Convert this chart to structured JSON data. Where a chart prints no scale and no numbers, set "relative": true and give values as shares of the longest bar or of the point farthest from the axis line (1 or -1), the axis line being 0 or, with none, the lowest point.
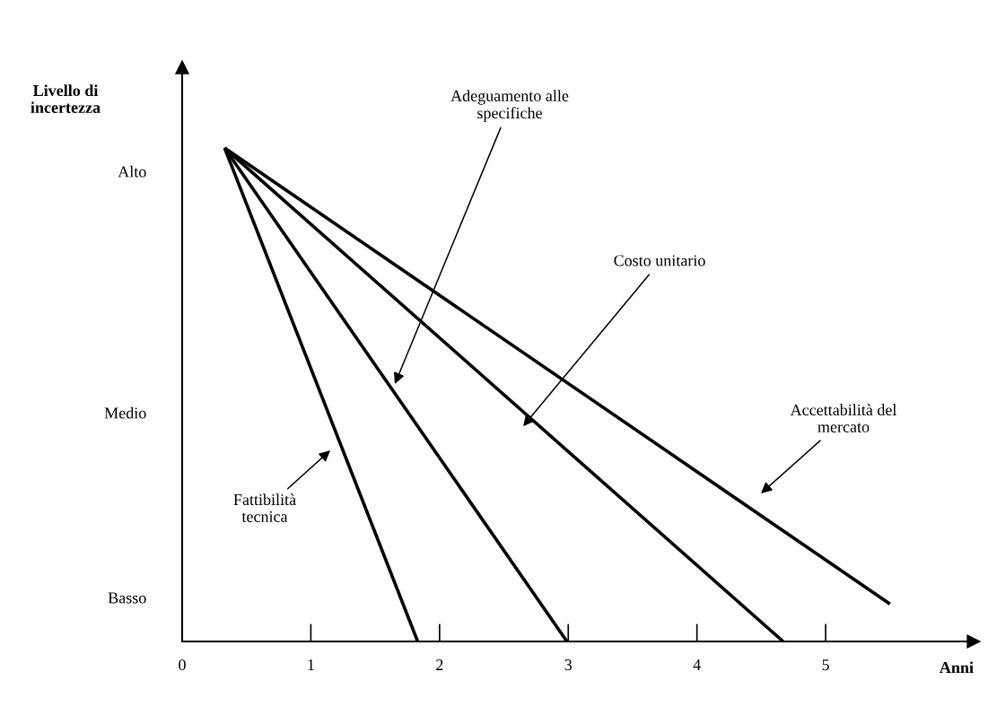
{
  "chart_data": {
    "type": "line",
    "xlabel": "Anni",
    "xlim": [
      0,
      6.15
    ],
    "xticks": [
      0,
      1,
      2,
      3,
      4,
      5
    ],
    "relative": true,
    "y_categories": [
      "Alto",
      "Medio",
      "Basso"
    ],
    "series": [
      {
        "color": "#000000",
        "x": [
          0.33,
          1.83
        ],
        "values": [
          1,
          0
        ]
      },
      {
        "color": "#000000",
        "x": [
          0.33,
          2.99
        ],
        "values": [
          1,
          0
        ]
      },
      {
        "color": "#000000",
        "x": [
          0.33,
          4.67
        ],
        "values": [
          1,
          0
        ]
      },
      {
        "color": "#000000",
        "x": [
          0.33,
          5.5
        ],
        "values": [
          1,
          0.076
        ]
      }
    ],
    "annotations": [
      "Adeguamento alle\nspecifiche",
      "Costo unitario",
      "Accettabilità del\nmercato",
      "Fattibilità\ntecnica",
      "Livello di\nincertezza"
    ],
    "grid": false,
    "legend": false,
    "marker": "none",
    "line_style": "solid"
  }
}
